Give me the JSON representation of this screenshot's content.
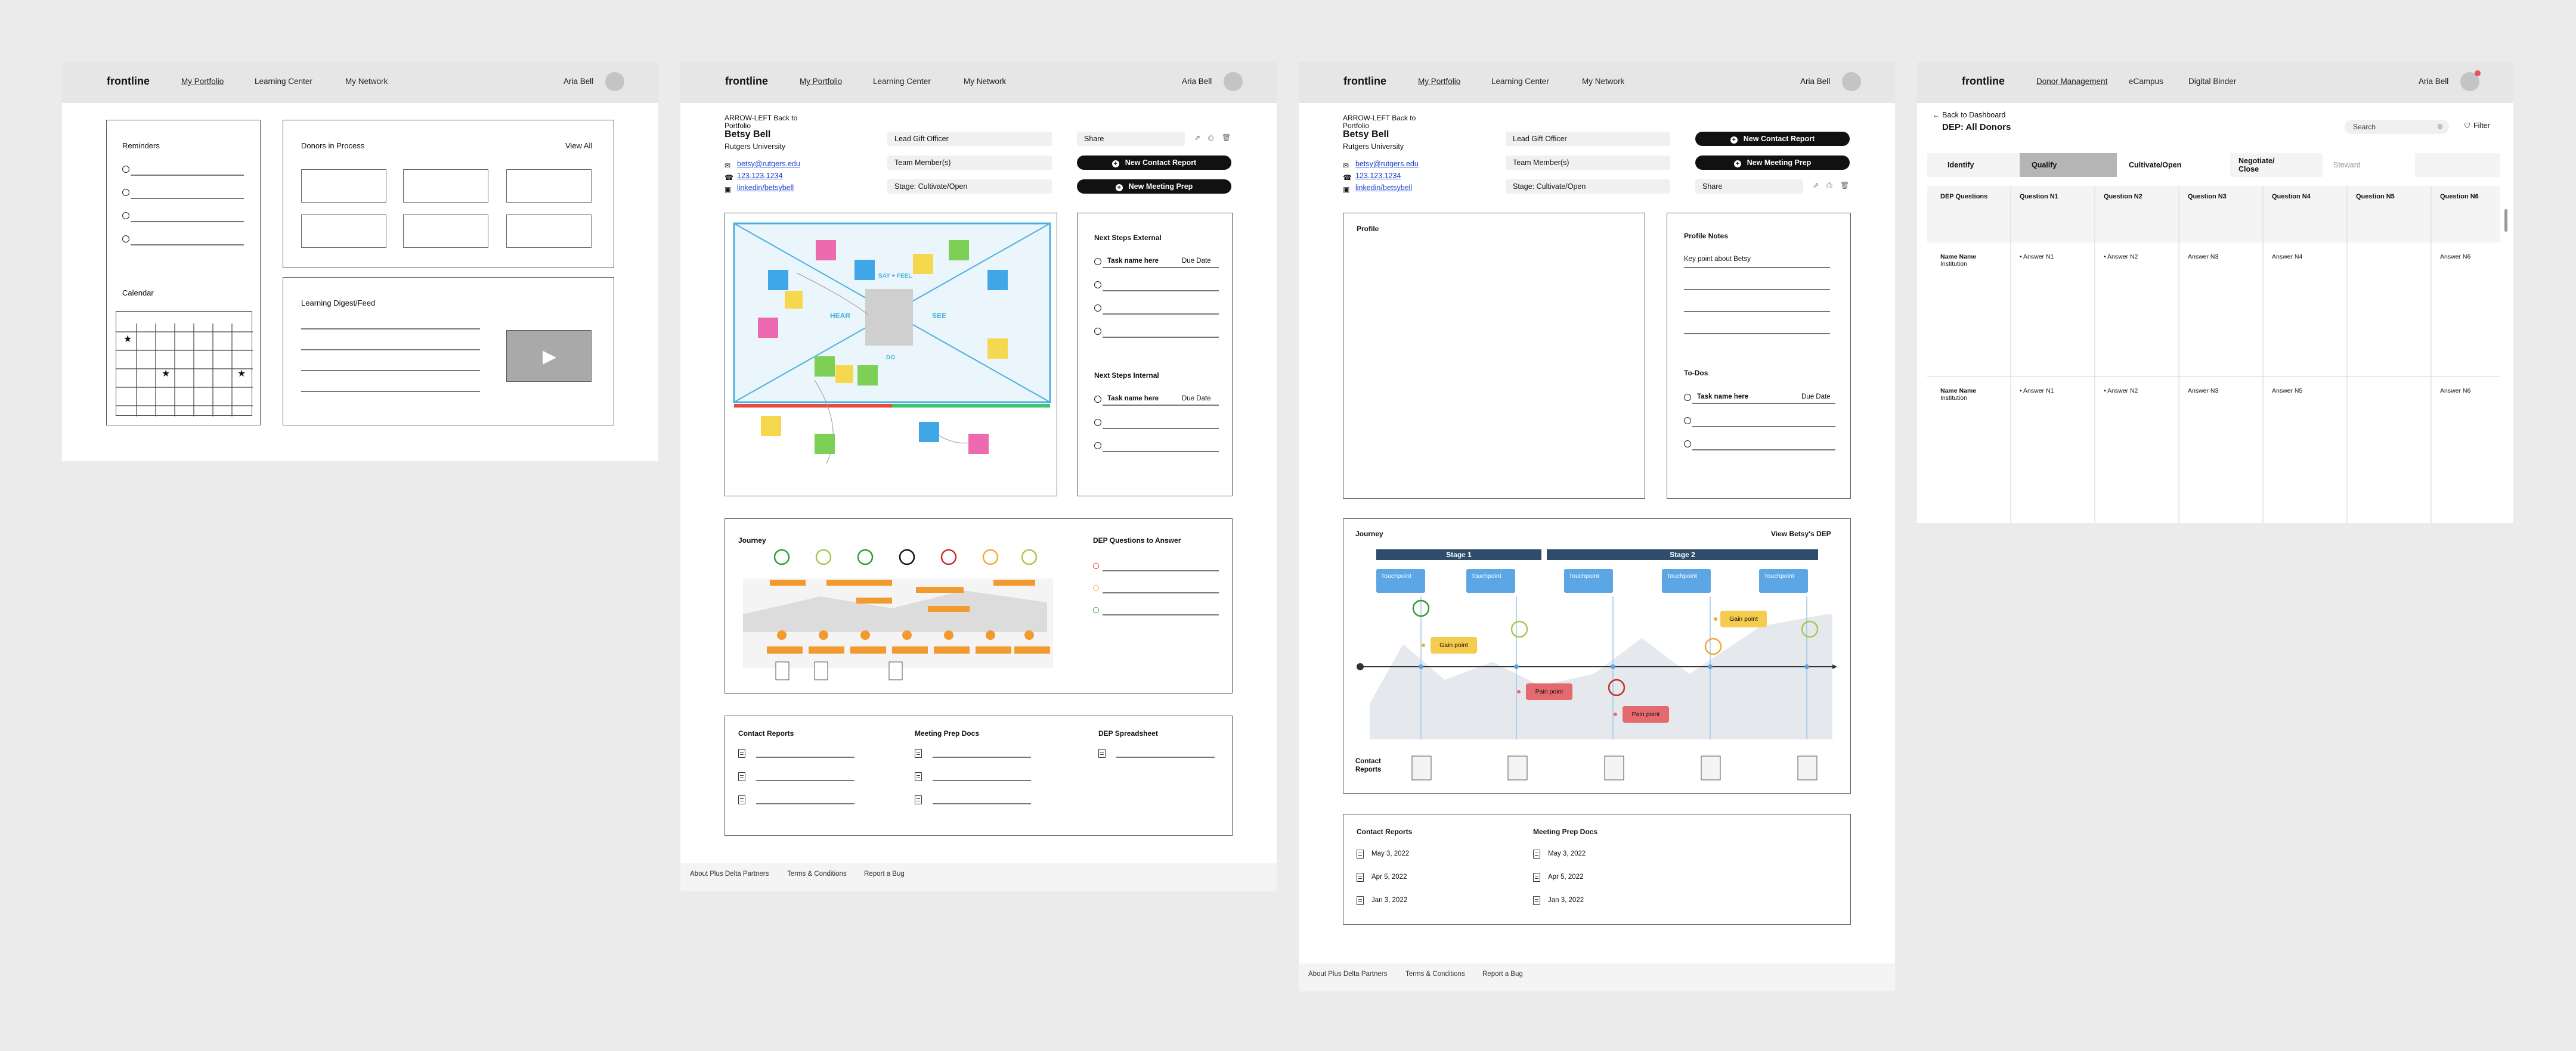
{
  "colors": {
    "bg": "#ebebeb",
    "nav": "#e6e6e6",
    "stage": "#2f4c6b",
    "touchpoint": "#5da6e6",
    "gain": "#f5cc4e",
    "pain": "#e56a6f",
    "active_tab": "#b5b5b5"
  },
  "nav": {
    "logo": "frontline",
    "links": [
      "My Portfolio",
      "Learning Center",
      "My Network"
    ],
    "user": "Aria Bell"
  },
  "nav4": {
    "links": [
      "Donor Management",
      "eCampus",
      "Digital Binder"
    ]
  },
  "p1": {
    "reminders": "Reminders",
    "calendar": "Calendar",
    "donors": "Donors in Process",
    "view_all": "View All",
    "digest": "Learning Digest/Feed",
    "star": "★",
    "play": "▶"
  },
  "donor": {
    "back": "ARROW-LEFT Back to Portfolio",
    "name": "Betsy Bell",
    "org": "Rutgers University",
    "email": "betsy@rutgers.edu",
    "phone": "123.123.1234",
    "linkedin": "linkedin/betsybell",
    "officer": "Lead Gift Officer",
    "team": "Team Member(s)",
    "stage": "Stage: Cultivate/Open",
    "share": "Share",
    "new_contact": "New Contact Report",
    "new_meeting": "New Meeting Prep"
  },
  "p2": {
    "next_ext": "Next Steps External",
    "next_int": "Next Steps Internal",
    "task": "Task name here",
    "due": "Due Date",
    "journey": "Journey",
    "dep_q": "DEP Questions to Answer",
    "contact_reports": "Contact Reports",
    "meeting_docs": "Meeting Prep Docs",
    "dep_sheet": "DEP Spreadsheet",
    "empathy": {
      "hear": "HEAR",
      "see": "SEE",
      "say": "SAY + FEEL",
      "do": "DO"
    }
  },
  "footer": {
    "about": "About Plus Delta Partners",
    "terms": "Terms & Conditions",
    "bug": "Report a Bug"
  },
  "p3": {
    "profile": "Profile",
    "profile_notes": "Profile Notes",
    "key_point": "Key point about Betsy",
    "todos": "To-Dos",
    "journey": "Journey",
    "view_dep": "View Betsy's DEP",
    "stage1": "Stage 1",
    "stage2": "Stage 2",
    "touchpoint": "Touchpoint",
    "gain": "Gain point",
    "pain": "Pain point",
    "contact_reports_label": "Contact Reports",
    "dates": [
      "May 3, 2022",
      "Apr 5, 2022",
      "Jan 3, 2022"
    ]
  },
  "p4": {
    "back": "Back to Dashboard",
    "title": "DEP: All Donors",
    "search": "Search",
    "filter": "Filter",
    "tabs": [
      "Identify",
      "Qualify",
      "Cultivate/Open",
      "Negotiate/ Close",
      "Steward"
    ],
    "active_tab": 1,
    "columns": [
      "DEP Questions",
      "Question N1",
      "Question N2",
      "Question N3",
      "Question N4",
      "Question N5",
      "Question N6"
    ],
    "rows": [
      {
        "name": "Name Name",
        "inst": "Institution",
        "answers": [
          "• Answer N1",
          "• Answer N2",
          "Answer N3",
          "Answer N4",
          "",
          "Answer N6"
        ]
      },
      {
        "name": "Name Name",
        "inst": "Institution",
        "answers": [
          "• Answer N1",
          "• Answer N2",
          "Answer N3",
          "Answer N5",
          "",
          "Answer N6"
        ]
      }
    ]
  }
}
